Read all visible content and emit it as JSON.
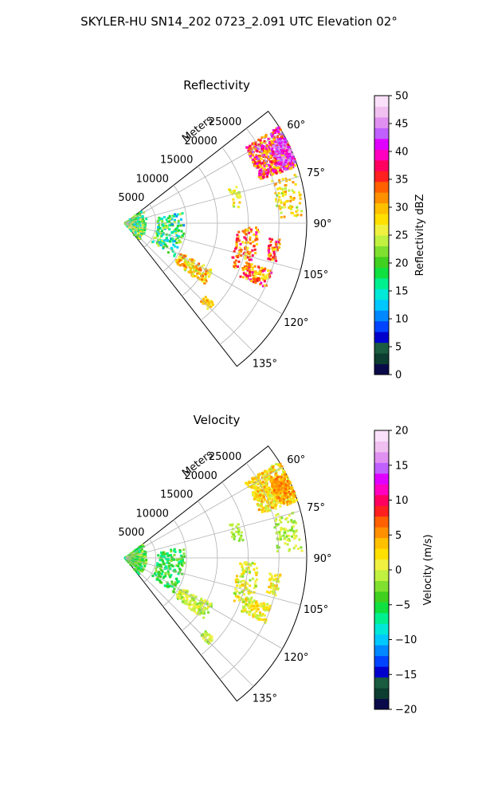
{
  "suptitle": "SKYLER-HU  SN14_202  0723_2.091 UTC Elevation 02°",
  "chart_data": [
    {
      "type": "heatmap",
      "subtype": "polar-sector radar PPI",
      "title": "Reflectivity",
      "radial_label": "Meters",
      "radial_ticks": [
        "5000",
        "10000",
        "15000",
        "20000",
        "25000"
      ],
      "radial_tick_values": [
        5000,
        10000,
        15000,
        20000,
        25000
      ],
      "r_max": 29500,
      "azimuth_ticks": [
        "60°",
        "75°",
        "90°",
        "105°",
        "120°",
        "135°"
      ],
      "azimuth_tick_values": [
        60,
        75,
        90,
        105,
        120,
        135
      ],
      "azimuth_range": [
        52,
        142
      ],
      "grid": true,
      "colorbar": {
        "label": "Reflectivity dBZ",
        "ticks": [
          "0",
          "5",
          "10",
          "15",
          "20",
          "25",
          "30",
          "35",
          "40",
          "45",
          "50"
        ],
        "range": [
          0,
          50
        ]
      }
    },
    {
      "type": "heatmap",
      "subtype": "polar-sector radar PPI",
      "title": "Velocity",
      "radial_label": "Meters",
      "radial_ticks": [
        "5000",
        "10000",
        "15000",
        "20000",
        "25000"
      ],
      "radial_tick_values": [
        5000,
        10000,
        15000,
        20000,
        25000
      ],
      "r_max": 29500,
      "azimuth_ticks": [
        "60°",
        "75°",
        "90°",
        "105°",
        "120°",
        "135°"
      ],
      "azimuth_tick_values": [
        60,
        75,
        90,
        105,
        120,
        135
      ],
      "azimuth_range": [
        52,
        142
      ],
      "grid": true,
      "colorbar": {
        "label": "Velocity (m/s)",
        "ticks": [
          "−20",
          "−15",
          "−10",
          "−5",
          "0",
          "5",
          "10",
          "15",
          "20"
        ],
        "range": [
          -20,
          20
        ]
      }
    }
  ],
  "colormap": [
    "#0a0a4a",
    "#0d3d30",
    "#1a5c40",
    "#0000cc",
    "#0044ff",
    "#0088ff",
    "#00c8ff",
    "#00e8d8",
    "#00f090",
    "#10e040",
    "#40d020",
    "#80e030",
    "#c0f040",
    "#f0f040",
    "#ffe000",
    "#ffc000",
    "#ff9000",
    "#ff6000",
    "#ff2020",
    "#ff0060",
    "#ff00c0",
    "#e000ff",
    "#c060ff",
    "#e090f0",
    "#f0c0f0",
    "#fae0fa"
  ]
}
